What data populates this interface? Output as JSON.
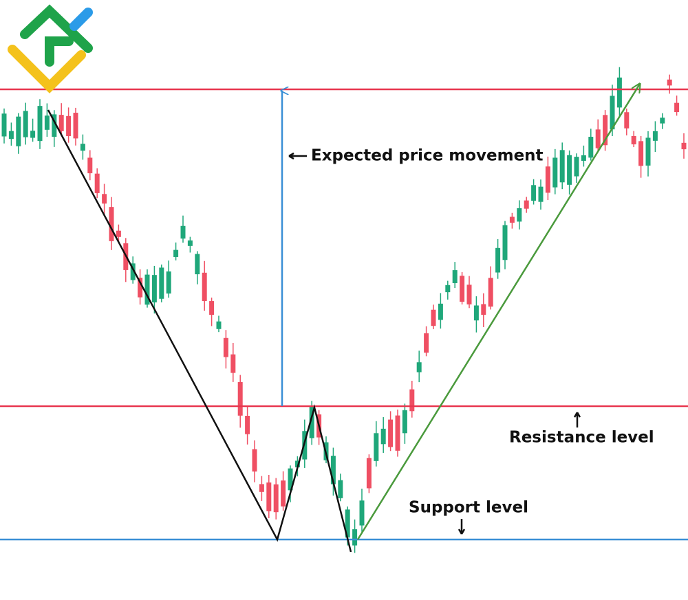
{
  "annotations": {
    "expected_move": "Expected price movement",
    "resistance": "Resistance level",
    "support": "Support level"
  }
}
